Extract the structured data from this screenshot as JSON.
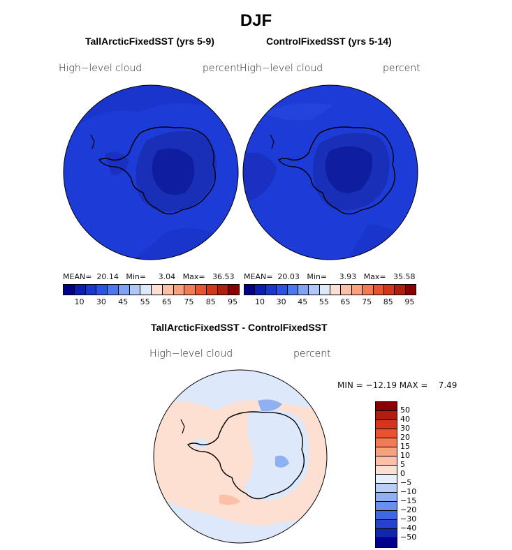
{
  "title": "DJF",
  "panels": [
    {
      "title": "TallArcticFixedSST (yrs 5-9)",
      "variable": "High−level cloud",
      "units": "percent",
      "stats": "MEAN=  20.14   Min=     3.04   Max=   36.53"
    },
    {
      "title": "ControlFixedSST (yrs 5-14)",
      "variable": "High−level cloud",
      "units": "percent",
      "stats": "MEAN=  20.03   Min=     3.93   Max=   35.58"
    }
  ],
  "colorbar_ticks": [
    "10",
    "30",
    "45",
    "55",
    "65",
    "75",
    "85",
    "95"
  ],
  "colorbar_colors": [
    "#00008b",
    "#0a1fb0",
    "#1637d0",
    "#2853e6",
    "#4a78ee",
    "#7ea3f3",
    "#afc8f6",
    "#dde9fb",
    "#fde0d2",
    "#fcc0a6",
    "#f9a07e",
    "#f37a57",
    "#e9532f",
    "#d4361c",
    "#b01e0f",
    "#8b0000"
  ],
  "diff_panel": {
    "title": "TallArcticFixedSST - ControlFixedSST",
    "variable": "High−level cloud",
    "units": "percent",
    "minmax": "MIN = −12.19 MAX =    7.49",
    "colorbar_ticks": [
      "50",
      "40",
      "30",
      "20",
      "15",
      "10",
      "5",
      "0",
      "−5",
      "−10",
      "−15",
      "−20",
      "−30",
      "−40",
      "−50"
    ],
    "colorbar_colors": [
      "#8b0000",
      "#b01e0f",
      "#d4361c",
      "#e9532f",
      "#f37a57",
      "#f9a07e",
      "#fcc0a6",
      "#fde0d2",
      "#e8f0fb",
      "#b9cff7",
      "#8fb0f2",
      "#6a90ee",
      "#3f67e4",
      "#2443cc",
      "#0f27ab",
      "#00008b"
    ]
  }
}
